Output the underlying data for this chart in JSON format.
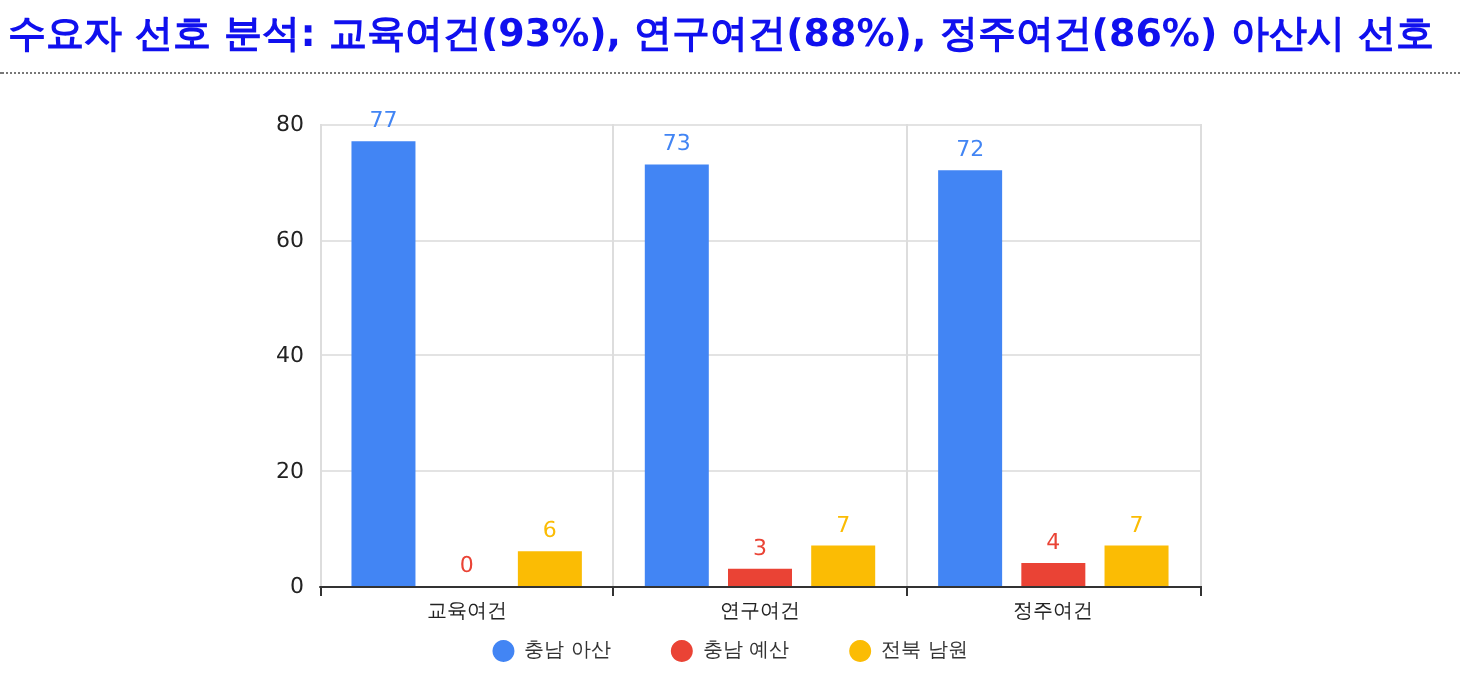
{
  "chart_data": {
    "type": "bar",
    "title": "수요자 선호 분석: 교육여건(93%), 연구여건(88%), 정주여건(86%) 아산시 선호",
    "categories": [
      "교육여건",
      "연구여건",
      "정주여건"
    ],
    "series": [
      {
        "name": "충남 아산",
        "color": "#4285f4",
        "values": [
          77,
          73,
          72
        ]
      },
      {
        "name": "충남 예산",
        "color": "#ea4335",
        "values": [
          0,
          3,
          4
        ]
      },
      {
        "name": "전북 남원",
        "color": "#fbbc04",
        "values": [
          6,
          7,
          7
        ]
      }
    ],
    "ylim": [
      0,
      80
    ],
    "yticks": [
      0,
      20,
      40,
      60,
      80
    ],
    "grid": true,
    "legend": "bottom",
    "data_labels": true
  }
}
